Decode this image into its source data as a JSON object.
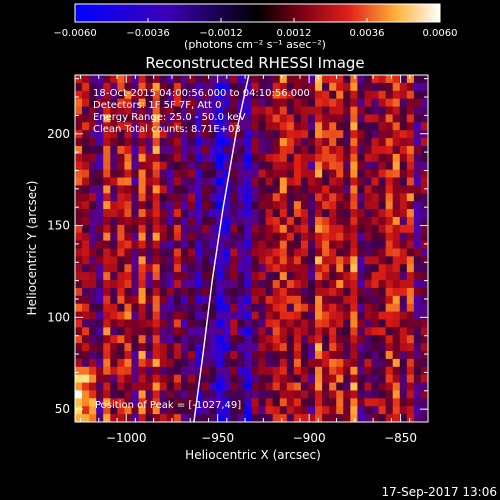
{
  "chart_data": {
    "type": "heatmap",
    "title": "Reconstructed RHESSI Image",
    "xlabel": "Heliocentric X (arcsec)",
    "ylabel": "Heliocentric Y (arcsec)",
    "xlim": [
      -1028,
      -835
    ],
    "ylim": [
      43,
      232
    ],
    "x_ticks": [
      -1000,
      -950,
      -900,
      -850
    ],
    "x_tick_labels": [
      "−1000",
      "−950",
      "−900",
      "−850"
    ],
    "y_ticks": [
      50,
      100,
      150,
      200
    ],
    "y_tick_labels": [
      "50",
      "100",
      "150",
      "200"
    ],
    "colorbar": {
      "range": [
        -0.006,
        0.006
      ],
      "ticks": [
        -0.006,
        -0.0036,
        -0.0012,
        0.0012,
        0.0036,
        0.006
      ],
      "tick_labels": [
        "−0.0060",
        "−0.0036",
        "−0.0012",
        "0.0012",
        "0.0036",
        "0.0060"
      ],
      "unit_label": "(photons cm⁻² s⁻¹ asec⁻²)",
      "colormap": "rhessi"
    },
    "annotations": {
      "time_range": "18-Oct-2015 04:00:56.000 to 04:10:56.000",
      "detectors": "Detectors: 1F 5F 7F, Att 0",
      "energy": "Energy Range: 25.0 - 50.0 keV",
      "method": "Clean     Total counts: 8.71E+03",
      "peak": "Position of Peak = [-1027,49]"
    },
    "limb_curve": {
      "x": [
        -963,
        -958,
        -953,
        -947,
        -940,
        -933
      ],
      "y": [
        43,
        80,
        120,
        160,
        200,
        232
      ]
    },
    "grid": {
      "nx": 50,
      "ny": 44,
      "seed": 17,
      "peak_position": [
        -1027,
        49
      ]
    }
  },
  "footer": {
    "timestamp": "17-Sep-2017 13:06"
  }
}
